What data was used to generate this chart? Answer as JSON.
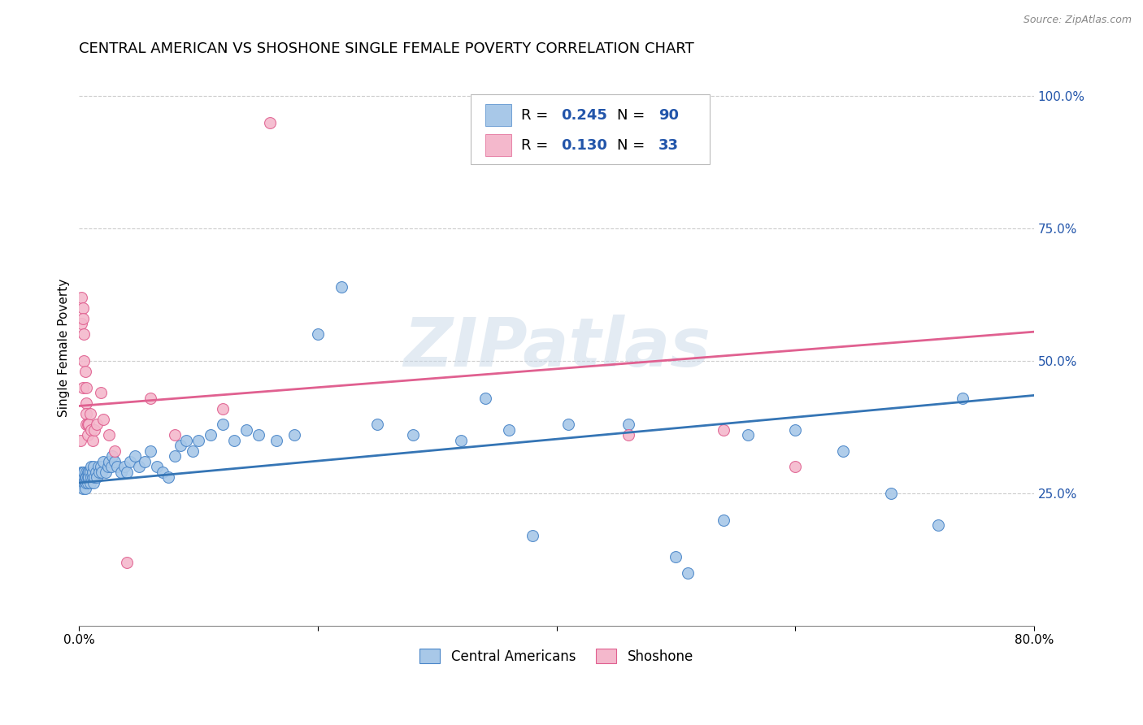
{
  "title": "CENTRAL AMERICAN VS SHOSHONE SINGLE FEMALE POVERTY CORRELATION CHART",
  "source": "Source: ZipAtlas.com",
  "ylabel": "Single Female Poverty",
  "watermark": "ZIPatlas",
  "xlim": [
    0.0,
    0.8
  ],
  "ylim": [
    0.0,
    1.05
  ],
  "xtick_positions": [
    0.0,
    0.2,
    0.4,
    0.6,
    0.8
  ],
  "xticklabels": [
    "0.0%",
    "",
    "",
    "",
    "80.0%"
  ],
  "yticks_right": [
    0.25,
    0.5,
    0.75,
    1.0
  ],
  "yticklabels_right": [
    "25.0%",
    "50.0%",
    "75.0%",
    "100.0%"
  ],
  "ca_color": "#a8c8e8",
  "sh_color": "#f4b8cc",
  "ca_edge_color": "#4a86c8",
  "sh_edge_color": "#e06090",
  "ca_line_color": "#3575b5",
  "sh_line_color": "#e06090",
  "ca_R": "0.245",
  "ca_N": "90",
  "sh_R": "0.130",
  "sh_N": "33",
  "ca_points_x": [
    0.001,
    0.001,
    0.002,
    0.002,
    0.002,
    0.003,
    0.003,
    0.003,
    0.003,
    0.004,
    0.004,
    0.004,
    0.005,
    0.005,
    0.005,
    0.006,
    0.006,
    0.006,
    0.006,
    0.007,
    0.007,
    0.007,
    0.008,
    0.008,
    0.008,
    0.009,
    0.009,
    0.01,
    0.01,
    0.011,
    0.011,
    0.012,
    0.012,
    0.013,
    0.014,
    0.015,
    0.016,
    0.017,
    0.018,
    0.019,
    0.02,
    0.022,
    0.024,
    0.025,
    0.027,
    0.028,
    0.03,
    0.032,
    0.035,
    0.038,
    0.04,
    0.043,
    0.047,
    0.05,
    0.055,
    0.06,
    0.065,
    0.07,
    0.075,
    0.08,
    0.085,
    0.09,
    0.095,
    0.1,
    0.11,
    0.12,
    0.13,
    0.14,
    0.15,
    0.165,
    0.18,
    0.2,
    0.22,
    0.25,
    0.28,
    0.32,
    0.36,
    0.41,
    0.46,
    0.51,
    0.56,
    0.6,
    0.64,
    0.68,
    0.72,
    0.5,
    0.54,
    0.38,
    0.34,
    0.74
  ],
  "ca_points_y": [
    0.28,
    0.27,
    0.28,
    0.27,
    0.29,
    0.28,
    0.27,
    0.29,
    0.26,
    0.28,
    0.27,
    0.29,
    0.28,
    0.27,
    0.26,
    0.29,
    0.28,
    0.27,
    0.28,
    0.29,
    0.28,
    0.27,
    0.28,
    0.29,
    0.28,
    0.29,
    0.27,
    0.28,
    0.3,
    0.28,
    0.29,
    0.3,
    0.27,
    0.28,
    0.29,
    0.28,
    0.3,
    0.29,
    0.3,
    0.29,
    0.31,
    0.29,
    0.3,
    0.31,
    0.3,
    0.32,
    0.31,
    0.3,
    0.29,
    0.3,
    0.29,
    0.31,
    0.32,
    0.3,
    0.31,
    0.33,
    0.3,
    0.29,
    0.28,
    0.32,
    0.34,
    0.35,
    0.33,
    0.35,
    0.36,
    0.38,
    0.35,
    0.37,
    0.36,
    0.35,
    0.36,
    0.55,
    0.64,
    0.38,
    0.36,
    0.35,
    0.37,
    0.38,
    0.38,
    0.1,
    0.36,
    0.37,
    0.33,
    0.25,
    0.19,
    0.13,
    0.2,
    0.17,
    0.43,
    0.43
  ],
  "sh_points_x": [
    0.001,
    0.002,
    0.002,
    0.003,
    0.003,
    0.003,
    0.004,
    0.004,
    0.005,
    0.006,
    0.006,
    0.006,
    0.006,
    0.007,
    0.007,
    0.008,
    0.009,
    0.01,
    0.011,
    0.013,
    0.015,
    0.018,
    0.02,
    0.025,
    0.03,
    0.04,
    0.06,
    0.08,
    0.12,
    0.16,
    0.46,
    0.54,
    0.6
  ],
  "sh_points_y": [
    0.35,
    0.57,
    0.62,
    0.6,
    0.58,
    0.45,
    0.55,
    0.5,
    0.48,
    0.45,
    0.42,
    0.4,
    0.38,
    0.38,
    0.36,
    0.38,
    0.4,
    0.37,
    0.35,
    0.37,
    0.38,
    0.44,
    0.39,
    0.36,
    0.33,
    0.12,
    0.43,
    0.36,
    0.41,
    0.95,
    0.36,
    0.37,
    0.3
  ],
  "ca_trend_x0": 0.0,
  "ca_trend_x1": 0.8,
  "ca_trend_y0": 0.27,
  "ca_trend_y1": 0.435,
  "sh_trend_x0": 0.0,
  "sh_trend_x1": 0.8,
  "sh_trend_y0": 0.415,
  "sh_trend_y1": 0.555,
  "grid_color": "#cccccc",
  "grid_linestyle": "--",
  "background_color": "#ffffff",
  "title_fontsize": 13,
  "axis_label_fontsize": 11,
  "tick_fontsize": 11,
  "legend_color": "#2255aa"
}
